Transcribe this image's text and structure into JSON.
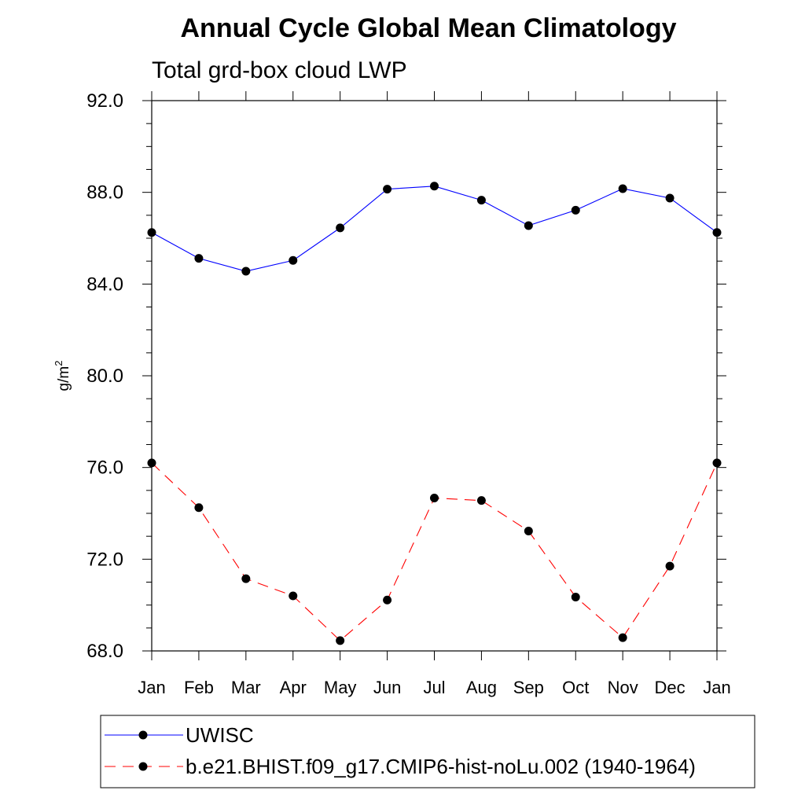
{
  "chart_data": {
    "type": "line",
    "title": "Annual Cycle Global Mean Climatology",
    "subtitle": "Total grd-box cloud LWP",
    "ylabel": "g/m",
    "ylabel_sup": "2",
    "xlabel": "",
    "categories": [
      "Jan",
      "Feb",
      "Mar",
      "Apr",
      "May",
      "Jun",
      "Jul",
      "Aug",
      "Sep",
      "Oct",
      "Nov",
      "Dec",
      "Jan"
    ],
    "ylim": [
      68.0,
      92.0
    ],
    "yticks": [
      68.0,
      72.0,
      76.0,
      80.0,
      84.0,
      88.0,
      92.0
    ],
    "ytick_labels": [
      "68.0",
      "72.0",
      "76.0",
      "80.0",
      "84.0",
      "88.0",
      "92.0"
    ],
    "yminor_step": 1.0,
    "series": [
      {
        "name": "UWISC",
        "color": "#0000ff",
        "dash": "solid",
        "values": [
          86.25,
          85.12,
          84.56,
          85.03,
          86.45,
          88.14,
          88.27,
          87.66,
          86.55,
          87.22,
          88.16,
          87.75,
          86.25
        ]
      },
      {
        "name": "b.e21.BHIST.f09_g17.CMIP6-hist-noLu.002 (1940-1964)",
        "color": "#ff0000",
        "dash": "dashed",
        "values": [
          76.2,
          74.25,
          71.15,
          70.4,
          68.45,
          70.22,
          74.67,
          74.56,
          73.23,
          70.35,
          68.58,
          71.7,
          76.2
        ]
      }
    ],
    "marker_color": "#000000",
    "legend_position": "bottom"
  }
}
